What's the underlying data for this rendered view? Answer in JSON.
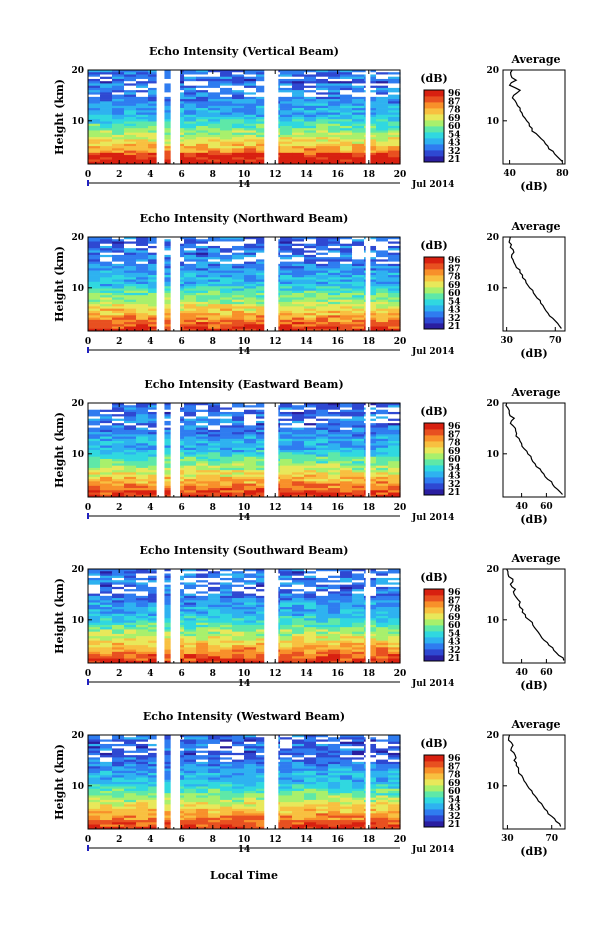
{
  "figure": {
    "xlabel": "Local Time",
    "date_label": "Jul 2014",
    "day_label": "14",
    "colorbar_unit": "(dB)",
    "colorbar_ticks": [
      "96",
      "87",
      "78",
      "69",
      "60",
      "54",
      "43",
      "32",
      "21"
    ],
    "colorbar_colors": [
      "#2a1ea0",
      "#2e48d2",
      "#2f7cf0",
      "#2eb2f0",
      "#30d8e0",
      "#5ee8a8",
      "#a8f06c",
      "#e8e85a",
      "#f8c040",
      "#f8902a",
      "#e85020",
      "#d82010"
    ],
    "x_ticks": [
      0,
      2,
      4,
      6,
      8,
      10,
      12,
      14,
      16,
      18,
      20
    ],
    "y_ticks": [
      10,
      20
    ],
    "ylabel": "Height (km)",
    "avg_title": "Average",
    "avg_xlabel": "(dB)"
  },
  "chart_data": [
    {
      "type": "heatmap",
      "title": "Echo Intensity (Vertical Beam)",
      "xlim": [
        0,
        20
      ],
      "ylim": [
        1.5,
        20
      ],
      "data_gaps_hours": [
        [
          4.4,
          4.9
        ],
        [
          5.3,
          5.9
        ],
        [
          11.3,
          12.2
        ],
        [
          17.8,
          18.1
        ]
      ],
      "color_levels_dB": [
        21,
        32,
        43,
        54,
        60,
        69,
        78,
        87,
        96
      ],
      "average_profile": {
        "xlim": [
          35,
          82
        ],
        "xticks": [
          40,
          80
        ],
        "height_km": [
          2,
          3,
          4,
          5,
          6,
          7,
          8,
          9,
          10,
          11,
          12,
          13,
          14,
          15,
          16,
          17,
          18,
          19,
          20
        ],
        "mean_dB": [
          80,
          76,
          73,
          69,
          66,
          62,
          57,
          55,
          53,
          50,
          48,
          46,
          44,
          43,
          48,
          40,
          45,
          41,
          42
        ]
      }
    },
    {
      "type": "heatmap",
      "title": "Echo Intensity (Northward Beam)",
      "xlim": [
        0,
        20
      ],
      "ylim": [
        1.5,
        20
      ],
      "data_gaps_hours": [
        [
          4.4,
          4.9
        ],
        [
          5.3,
          5.9
        ],
        [
          11.3,
          12.2
        ],
        [
          17.8,
          18.1
        ]
      ],
      "color_levels_dB": [
        21,
        32,
        43,
        54,
        60,
        69,
        78,
        87,
        96
      ],
      "average_profile": {
        "xlim": [
          27,
          78
        ],
        "xticks": [
          30,
          70
        ],
        "height_km": [
          2,
          3,
          4,
          5,
          6,
          7,
          8,
          9,
          10,
          11,
          12,
          13,
          14,
          15,
          16,
          17,
          18,
          19,
          20
        ],
        "mean_dB": [
          75,
          72,
          68,
          64,
          61,
          58,
          55,
          52,
          49,
          46,
          43,
          41,
          38,
          36,
          34,
          36,
          33,
          32,
          33
        ]
      }
    },
    {
      "type": "heatmap",
      "title": "Echo Intensity (Eastward Beam)",
      "xlim": [
        0,
        20
      ],
      "ylim": [
        1.5,
        20
      ],
      "data_gaps_hours": [
        [
          4.4,
          4.9
        ],
        [
          5.3,
          5.9
        ],
        [
          11.3,
          12.2
        ],
        [
          17.8,
          18.1
        ]
      ],
      "color_levels_dB": [
        21,
        32,
        43,
        54,
        60,
        69,
        78,
        87,
        96
      ],
      "average_profile": {
        "xlim": [
          25,
          75
        ],
        "xticks": [
          40,
          60
        ],
        "height_km": [
          2,
          3,
          4,
          5,
          6,
          7,
          8,
          9,
          10,
          11,
          12,
          13,
          14,
          15,
          16,
          17,
          18,
          19,
          20
        ],
        "mean_dB": [
          73,
          69,
          65,
          61,
          58,
          55,
          51,
          48,
          45,
          42,
          40,
          38,
          36,
          35,
          31,
          34,
          30,
          29,
          28
        ]
      }
    },
    {
      "type": "heatmap",
      "title": "Echo Intensity (Southward Beam)",
      "xlim": [
        0,
        20
      ],
      "ylim": [
        1.5,
        20
      ],
      "data_gaps_hours": [
        [
          4.4,
          4.9
        ],
        [
          5.3,
          5.9
        ],
        [
          11.3,
          12.2
        ],
        [
          17.8,
          18.1
        ]
      ],
      "color_levels_dB": [
        21,
        32,
        43,
        54,
        60,
        69,
        78,
        87,
        96
      ],
      "average_profile": {
        "xlim": [
          25,
          75
        ],
        "xticks": [
          40,
          60
        ],
        "height_km": [
          2,
          3,
          4,
          5,
          6,
          7,
          8,
          9,
          10,
          11,
          12,
          13,
          14,
          15,
          16,
          17,
          18,
          19,
          20
        ],
        "mean_dB": [
          74,
          70,
          66,
          62,
          58,
          55,
          52,
          49,
          46,
          43,
          41,
          38,
          37,
          34,
          35,
          31,
          33,
          29,
          28
        ]
      }
    },
    {
      "type": "heatmap",
      "title": "Echo Intensity (Westward Beam)",
      "xlim": [
        0,
        20
      ],
      "ylim": [
        1.5,
        20
      ],
      "data_gaps_hours": [
        [
          4.4,
          4.9
        ],
        [
          5.3,
          5.9
        ],
        [
          11.3,
          12.2
        ],
        [
          17.8,
          18.1
        ]
      ],
      "color_levels_dB": [
        21,
        32,
        43,
        54,
        60,
        69,
        78,
        87,
        96
      ],
      "average_profile": {
        "xlim": [
          26,
          82
        ],
        "xticks": [
          30,
          70
        ],
        "height_km": [
          2,
          3,
          4,
          5,
          6,
          7,
          8,
          9,
          10,
          11,
          12,
          13,
          14,
          15,
          16,
          17,
          18,
          19,
          20
        ],
        "mean_dB": [
          78,
          74,
          70,
          66,
          62,
          58,
          55,
          52,
          48,
          45,
          43,
          40,
          38,
          36,
          37,
          33,
          35,
          31,
          32
        ]
      }
    }
  ]
}
